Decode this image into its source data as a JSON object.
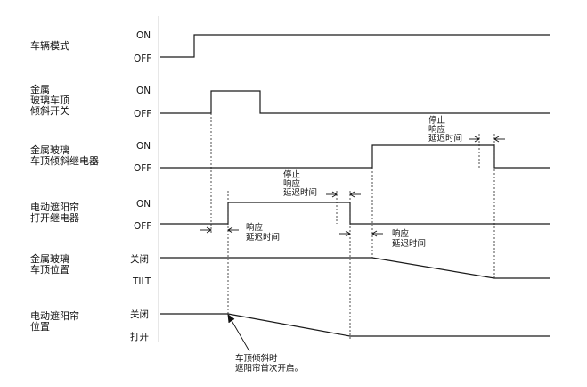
{
  "signals": [
    {
      "id": "vehicle-mode",
      "label_lines": [
        "车辆模式"
      ],
      "high_label": "ON",
      "low_label": "OFF"
    },
    {
      "id": "tilt-switch",
      "label_lines": [
        "金属",
        "玻璃车顶",
        "倾斜开关"
      ],
      "high_label": "ON",
      "low_label": "OFF"
    },
    {
      "id": "tilt-relay",
      "label_lines": [
        "金属玻璃",
        "车顶倾斜继电器"
      ],
      "high_label": "ON",
      "low_label": "OFF"
    },
    {
      "id": "sunshade-relay",
      "label_lines": [
        "电动遮阳帘",
        "打开继电器"
      ],
      "high_label": "ON",
      "low_label": "OFF"
    },
    {
      "id": "roof-position",
      "label_lines": [
        "金属玻璃",
        "车顶位置"
      ],
      "high_label": "关闭",
      "low_label": "TILT"
    },
    {
      "id": "sunshade-position",
      "label_lines": [
        "电动遮阳帘",
        "位置"
      ],
      "high_label": "关闭",
      "low_label": "打开"
    }
  ],
  "annotations": {
    "stop_delay_1": [
      "停止",
      "响应",
      "延迟时间"
    ],
    "stop_delay_2": [
      "停止",
      "响应",
      "延迟时间"
    ],
    "response_delay_1": [
      "响应",
      "延迟时间"
    ],
    "response_delay_2": [
      "响应",
      "延迟时间"
    ],
    "note": [
      "车顶倾斜时",
      "遮阳帘首次开启。"
    ]
  }
}
